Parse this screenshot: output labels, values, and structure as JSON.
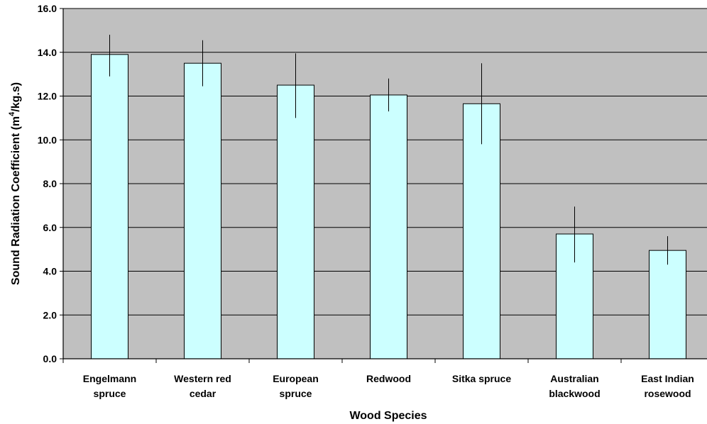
{
  "chart_data": {
    "type": "bar",
    "title": "",
    "xlabel": "Wood Species",
    "ylabel_prefix": "Sound Radiation Coefficient (m",
    "ylabel_sup": "4",
    "ylabel_suffix": "/kg.s)",
    "ylim": [
      0,
      16
    ],
    "yticks": [
      "0.0",
      "2.0",
      "4.0",
      "6.0",
      "8.0",
      "10.0",
      "12.0",
      "14.0",
      "16.0"
    ],
    "grid": true,
    "legend": "none",
    "categories": [
      [
        "Engelmann",
        "spruce"
      ],
      [
        "Western red",
        "cedar"
      ],
      [
        "European",
        "spruce"
      ],
      [
        "Redwood"
      ],
      [
        "Sitka spruce"
      ],
      [
        "Australian",
        "blackwood"
      ],
      [
        "East Indian",
        "rosewood"
      ]
    ],
    "values": [
      13.9,
      13.5,
      12.5,
      12.05,
      11.65,
      5.7,
      4.95
    ],
    "error_low": [
      12.9,
      12.45,
      11.0,
      11.3,
      9.8,
      4.4,
      4.3
    ],
    "error_high": [
      14.8,
      14.55,
      13.95,
      12.8,
      13.5,
      6.95,
      5.6
    ],
    "colors": {
      "plot_background": "#c0c0c0",
      "bar_fill": "#ccffff",
      "bar_stroke": "#000000",
      "grid": "#000000"
    }
  }
}
